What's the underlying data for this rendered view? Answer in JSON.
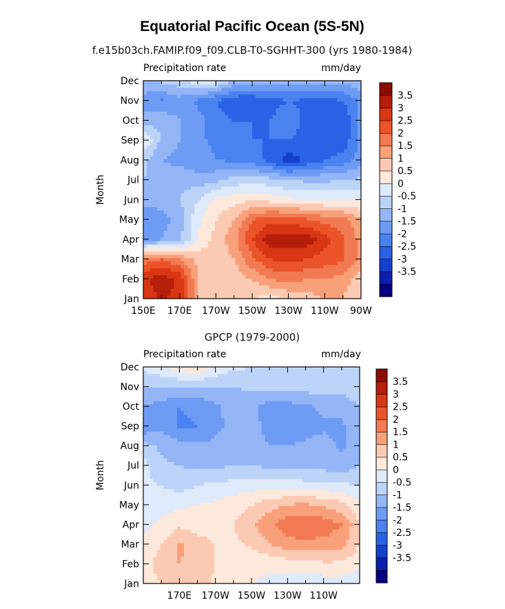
{
  "figure": {
    "title": "Equatorial Pacific Ocean (5S-5N)",
    "colors": [
      "#080080",
      "#0c1eaa",
      "#1440cc",
      "#2a62e6",
      "#4a82f0",
      "#6e9cf4",
      "#94b6f6",
      "#bcd4f8",
      "#dfeafa",
      "#fde8dc",
      "#fccab2",
      "#f8a07a",
      "#f27a52",
      "#ea5428",
      "#d93614",
      "#b41e0a",
      "#8a0c04"
    ],
    "colorbar_labels": [
      "3.5",
      "3",
      "2.5",
      "2",
      "1.5",
      "1",
      "0.5",
      "0",
      "-0.5",
      "-1",
      "-1.5",
      "-2",
      "-2.5",
      "-3",
      "-3.5"
    ]
  },
  "chart_data": [
    {
      "type": "heatmap",
      "title": "f.e15b03ch.FAMIP.f09_f09.CLB-T0-SGHHT-300 (yrs 1980-1984)",
      "left_label": "Precipitation rate",
      "right_label": "mm/day",
      "ylabel": "Month",
      "y_ticks": [
        "Jan",
        "Feb",
        "Mar",
        "Apr",
        "May",
        "Jun",
        "Jul",
        "Aug",
        "Sep",
        "Oct",
        "Nov",
        "Dec"
      ],
      "x_ticks": [
        "150E",
        "170E",
        "170W",
        "150W",
        "130W",
        "110W",
        "90W"
      ],
      "x_range": [
        150,
        270
      ],
      "levels": [
        -3.5,
        -3,
        -2.5,
        -2,
        -1.5,
        -1,
        -0.5,
        0,
        0.5,
        1,
        1.5,
        2,
        2.5,
        3,
        3.5
      ],
      "x": [
        150,
        160,
        170,
        180,
        190,
        200,
        210,
        220,
        230,
        240,
        250,
        260,
        270
      ],
      "z": [
        [
          3.0,
          3.6,
          3.3,
          1.5,
          1.0,
          1.2,
          1.0,
          0.8,
          1.0,
          1.2,
          1.5,
          1.5,
          1.0
        ],
        [
          3.4,
          3.8,
          3.4,
          1.5,
          1.2,
          1.2,
          1.5,
          2.0,
          2.2,
          2.0,
          2.0,
          1.8,
          1.2
        ],
        [
          2.2,
          2.5,
          2.0,
          1.4,
          1.2,
          1.5,
          2.4,
          3.0,
          3.2,
          3.0,
          2.8,
          2.6,
          1.8
        ],
        [
          -1.2,
          -1.0,
          -0.6,
          0.5,
          1.2,
          1.8,
          3.0,
          3.8,
          3.7,
          3.8,
          3.2,
          2.6,
          1.8
        ],
        [
          -1.4,
          -1.2,
          -0.8,
          0.4,
          1.0,
          1.5,
          2.5,
          2.8,
          2.8,
          2.6,
          2.3,
          2.2,
          1.6
        ],
        [
          -0.8,
          -0.8,
          -0.5,
          0.0,
          0.6,
          0.8,
          0.9,
          0.8,
          0.6,
          0.5,
          0.5,
          0.5,
          0.4
        ],
        [
          -0.5,
          -0.6,
          -0.6,
          -0.8,
          -0.6,
          -0.3,
          -0.2,
          -0.3,
          -0.5,
          -0.6,
          -0.6,
          -0.5,
          -0.4
        ],
        [
          -0.4,
          -1.0,
          -1.2,
          -1.3,
          -1.5,
          -1.6,
          -1.8,
          -2.2,
          -2.8,
          -2.4,
          -2.0,
          -1.8,
          -1.2
        ],
        [
          0.6,
          -0.6,
          -1.0,
          -1.4,
          -1.6,
          -1.8,
          -2.0,
          -2.0,
          -2.0,
          -2.2,
          -2.4,
          -2.3,
          -1.4
        ],
        [
          -0.8,
          -0.6,
          -1.0,
          -1.3,
          -1.8,
          -2.0,
          -2.0,
          -2.0,
          -1.6,
          -2.2,
          -2.5,
          -2.4,
          -1.4
        ],
        [
          -1.2,
          -1.6,
          -1.2,
          -1.6,
          -2.0,
          -2.4,
          -2.4,
          -2.2,
          -2.0,
          -2.1,
          -2.2,
          -2.0,
          -1.4
        ],
        [
          -0.6,
          -0.4,
          -0.2,
          0.3,
          0.2,
          -0.6,
          -0.8,
          -0.8,
          -0.8,
          -0.9,
          -0.8,
          -0.8,
          -0.6
        ]
      ]
    },
    {
      "type": "heatmap",
      "title": "GPCP (1979-2000)",
      "left_label": "Precipitation rate",
      "right_label": "mm/day",
      "ylabel": "Month",
      "y_ticks": [
        "Jan",
        "Feb",
        "Mar",
        "Apr",
        "May",
        "Jun",
        "Jul",
        "Aug",
        "Sep",
        "Oct",
        "Nov",
        "Dec"
      ],
      "x_ticks": [
        "170E",
        "170W",
        "150W",
        "130W",
        "110W"
      ],
      "x_range": [
        150,
        270
      ],
      "levels": [
        -3.5,
        -3,
        -2.5,
        -2,
        -1.5,
        -1,
        -0.5,
        0,
        0.5,
        1,
        1.5,
        2,
        2.5,
        3,
        3.5
      ],
      "x": [
        150,
        160,
        170,
        180,
        190,
        200,
        210,
        220,
        230,
        240,
        250,
        260,
        270
      ],
      "z": [
        [
          0.8,
          1.0,
          1.3,
          1.5,
          0.8,
          0.6,
          0.5,
          0.4,
          0.3,
          0.2,
          0.2,
          0.2,
          0.1
        ],
        [
          0.8,
          1.2,
          1.5,
          1.4,
          1.0,
          0.8,
          0.6,
          0.6,
          0.7,
          0.8,
          0.9,
          0.9,
          0.6
        ],
        [
          0.6,
          1.0,
          1.6,
          1.2,
          1.0,
          0.9,
          1.1,
          1.5,
          1.8,
          1.9,
          1.8,
          1.7,
          1.0
        ],
        [
          0.4,
          0.6,
          0.9,
          0.8,
          0.8,
          1.0,
          1.4,
          1.9,
          2.3,
          2.4,
          2.3,
          2.0,
          1.1
        ],
        [
          0.2,
          0.3,
          0.4,
          0.5,
          0.6,
          0.8,
          1.0,
          1.3,
          1.5,
          1.6,
          1.4,
          1.2,
          0.6
        ],
        [
          0.1,
          0.0,
          -0.2,
          0.0,
          0.1,
          0.2,
          0.3,
          0.3,
          0.3,
          0.2,
          0.2,
          0.1,
          0.0
        ],
        [
          0.2,
          -0.4,
          -0.5,
          -0.6,
          -0.6,
          -0.5,
          -0.5,
          -0.6,
          -0.6,
          -0.7,
          -0.7,
          -0.8,
          -0.5
        ],
        [
          -0.3,
          -0.6,
          -0.8,
          -0.9,
          -0.9,
          -0.8,
          -0.8,
          -1.0,
          -1.0,
          -0.9,
          -0.8,
          -1.1,
          -0.6
        ],
        [
          -1.4,
          -1.1,
          -1.6,
          -1.5,
          -1.1,
          -0.9,
          -0.8,
          -1.2,
          -1.3,
          -1.2,
          -1.1,
          -1.1,
          -0.7
        ],
        [
          -1.0,
          -1.2,
          -1.5,
          -1.4,
          -1.1,
          -0.8,
          -0.9,
          -1.2,
          -1.2,
          -1.1,
          -0.9,
          -0.8,
          -0.5
        ],
        [
          -0.5,
          -0.5,
          -0.5,
          -0.5,
          -0.5,
          -0.5,
          -0.4,
          -0.4,
          -0.3,
          -0.3,
          -0.2,
          -0.3,
          -0.2
        ],
        [
          0.1,
          0.4,
          0.8,
          0.9,
          0.4,
          0.1,
          0.0,
          -0.1,
          -0.2,
          -0.2,
          -0.2,
          -0.3,
          -0.2
        ]
      ]
    }
  ]
}
